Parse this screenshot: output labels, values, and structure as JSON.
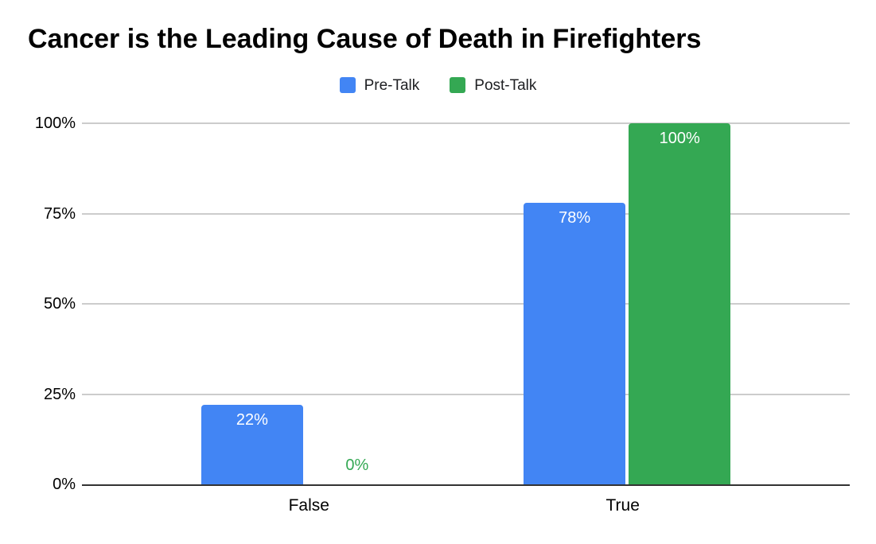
{
  "chart_data": {
    "type": "bar",
    "title": "Cancer is the Leading Cause of Death in Firefighters",
    "categories": [
      "False",
      "True"
    ],
    "series": [
      {
        "name": "Pre-Talk",
        "color": "#4285F4",
        "values": [
          22,
          78
        ],
        "data_labels": [
          "22%",
          "78%"
        ]
      },
      {
        "name": "Post-Talk",
        "color": "#34A853",
        "values": [
          0,
          100
        ],
        "data_labels": [
          "0%",
          "100%"
        ]
      }
    ],
    "xlabel": "",
    "ylabel": "",
    "ylim": [
      0,
      100
    ],
    "y_ticks": [
      {
        "value": 0,
        "label": "0%"
      },
      {
        "value": 25,
        "label": "25%"
      },
      {
        "value": 50,
        "label": "50%"
      },
      {
        "value": 75,
        "label": "75%"
      },
      {
        "value": 100,
        "label": "100%"
      }
    ],
    "grid": true,
    "legend_position": "top"
  },
  "style": {
    "background": "#ffffff",
    "title_color": "#000000",
    "text_color": "#000000",
    "grid_color": "#cccccc",
    "axis_color": "#333333",
    "bar_label_color": "#ffffff"
  }
}
